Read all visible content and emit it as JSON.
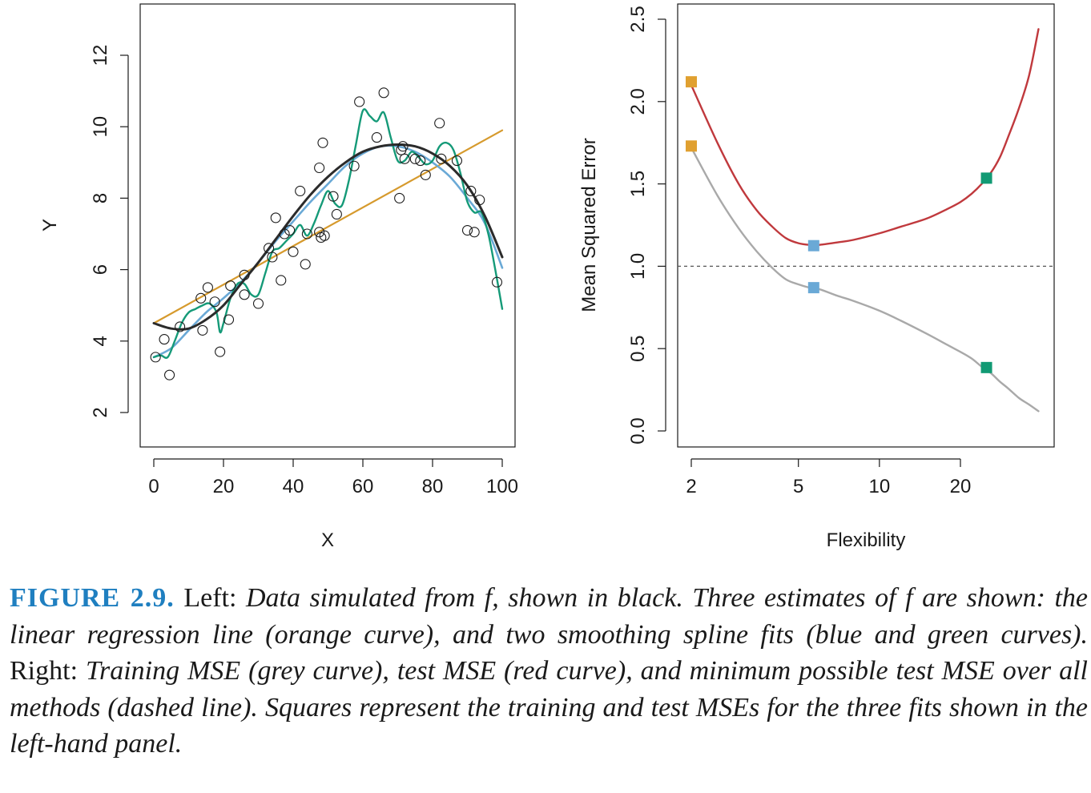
{
  "chart_data": [
    {
      "type": "scatter",
      "panel": "left",
      "xlabel": "X",
      "ylabel": "Y",
      "xlim": [
        0,
        100
      ],
      "ylim": [
        1,
        13
      ],
      "xticks": [
        "0",
        "20",
        "40",
        "60",
        "80",
        "100"
      ],
      "yticks": [
        "2",
        "4",
        "6",
        "8",
        "10",
        "12"
      ],
      "grid": false,
      "points": [
        [
          0.5,
          3.55
        ],
        [
          3,
          4.05
        ],
        [
          4.5,
          3.05
        ],
        [
          7.5,
          4.4
        ],
        [
          13.5,
          5.2
        ],
        [
          14,
          4.3
        ],
        [
          15.5,
          5.5
        ],
        [
          17.5,
          5.1
        ],
        [
          19,
          3.7
        ],
        [
          21.5,
          4.6
        ],
        [
          22,
          5.55
        ],
        [
          26,
          5.3
        ],
        [
          26,
          5.85
        ],
        [
          30,
          5.05
        ],
        [
          33,
          6.6
        ],
        [
          34,
          6.35
        ],
        [
          35,
          7.45
        ],
        [
          36.5,
          5.7
        ],
        [
          37.5,
          7.0
        ],
        [
          39,
          7.1
        ],
        [
          40,
          6.5
        ],
        [
          42,
          8.2
        ],
        [
          43.5,
          6.15
        ],
        [
          44,
          7.0
        ],
        [
          47.5,
          7.05
        ],
        [
          47.5,
          8.85
        ],
        [
          48,
          6.9
        ],
        [
          48.5,
          9.55
        ],
        [
          49,
          6.95
        ],
        [
          51.5,
          8.05
        ],
        [
          52.5,
          7.55
        ],
        [
          57.5,
          8.9
        ],
        [
          59,
          10.7
        ],
        [
          64,
          9.7
        ],
        [
          66,
          10.95
        ],
        [
          70.5,
          8.0
        ],
        [
          71,
          9.35
        ],
        [
          71.5,
          9.45
        ],
        [
          72,
          9.1
        ],
        [
          75,
          9.1
        ],
        [
          76.5,
          9.05
        ],
        [
          78,
          8.65
        ],
        [
          82,
          10.1
        ],
        [
          82.5,
          9.1
        ],
        [
          87,
          9.05
        ],
        [
          90,
          7.1
        ],
        [
          91,
          8.2
        ],
        [
          92,
          7.05
        ],
        [
          93.5,
          7.95
        ],
        [
          98.5,
          5.65
        ]
      ],
      "series": [
        {
          "role": "true-function",
          "color": "#2b2b2b",
          "points": [
            [
              0,
              4.5
            ],
            [
              5,
              4.35
            ],
            [
              10,
              4.35
            ],
            [
              15,
              4.6
            ],
            [
              20,
              5.0
            ],
            [
              25,
              5.6
            ],
            [
              30,
              6.2
            ],
            [
              35,
              6.85
            ],
            [
              40,
              7.5
            ],
            [
              45,
              8.1
            ],
            [
              50,
              8.6
            ],
            [
              55,
              9.0
            ],
            [
              60,
              9.3
            ],
            [
              65,
              9.45
            ],
            [
              70,
              9.5
            ],
            [
              75,
              9.45
            ],
            [
              80,
              9.25
            ],
            [
              85,
              8.9
            ],
            [
              90,
              8.35
            ],
            [
              95,
              7.5
            ],
            [
              100,
              6.35
            ]
          ]
        },
        {
          "role": "linear-regression",
          "color": "#d69a2d",
          "points": [
            [
              0,
              4.5
            ],
            [
              100,
              9.9
            ]
          ]
        },
        {
          "role": "smoothing-spline-blue",
          "color": "#6aa9d6",
          "points": [
            [
              0,
              3.55
            ],
            [
              5,
              3.8
            ],
            [
              10,
              4.3
            ],
            [
              15,
              4.8
            ],
            [
              20,
              5.2
            ],
            [
              25,
              5.65
            ],
            [
              30,
              6.2
            ],
            [
              35,
              6.8
            ],
            [
              40,
              7.35
            ],
            [
              45,
              7.9
            ],
            [
              50,
              8.4
            ],
            [
              55,
              8.9
            ],
            [
              60,
              9.25
            ],
            [
              65,
              9.45
            ],
            [
              70,
              9.45
            ],
            [
              75,
              9.3
            ],
            [
              80,
              9.0
            ],
            [
              85,
              8.6
            ],
            [
              90,
              8.0
            ],
            [
              95,
              7.3
            ],
            [
              100,
              6.05
            ]
          ]
        },
        {
          "role": "smoothing-spline-green",
          "color": "#159a78",
          "points": [
            [
              0,
              3.55
            ],
            [
              2,
              3.6
            ],
            [
              4,
              3.55
            ],
            [
              6,
              4.0
            ],
            [
              8,
              4.5
            ],
            [
              10,
              4.8
            ],
            [
              12,
              4.9
            ],
            [
              14,
              5.0
            ],
            [
              16,
              5.05
            ],
            [
              18,
              4.8
            ],
            [
              19,
              4.25
            ],
            [
              20,
              4.5
            ],
            [
              22,
              5.2
            ],
            [
              24,
              5.6
            ],
            [
              26,
              5.6
            ],
            [
              28,
              5.3
            ],
            [
              30,
              5.3
            ],
            [
              32,
              5.9
            ],
            [
              34,
              6.5
            ],
            [
              36,
              6.6
            ],
            [
              38,
              6.8
            ],
            [
              40,
              7.0
            ],
            [
              42,
              7.25
            ],
            [
              44,
              6.95
            ],
            [
              46,
              7.3
            ],
            [
              48,
              7.8
            ],
            [
              50,
              8.2
            ],
            [
              52,
              7.85
            ],
            [
              54,
              7.8
            ],
            [
              56,
              8.5
            ],
            [
              58,
              9.5
            ],
            [
              60,
              10.45
            ],
            [
              62,
              10.3
            ],
            [
              64,
              10.15
            ],
            [
              66,
              10.4
            ],
            [
              68,
              9.7
            ],
            [
              70,
              9.05
            ],
            [
              72,
              9.05
            ],
            [
              74,
              9.3
            ],
            [
              76,
              9.15
            ],
            [
              78,
              8.95
            ],
            [
              80,
              9.05
            ],
            [
              82,
              9.45
            ],
            [
              84,
              9.55
            ],
            [
              86,
              9.35
            ],
            [
              88,
              8.7
            ],
            [
              90,
              7.9
            ],
            [
              92,
              7.6
            ],
            [
              94,
              7.6
            ],
            [
              96,
              7.0
            ],
            [
              98,
              6.0
            ],
            [
              100,
              4.9
            ]
          ]
        }
      ]
    },
    {
      "type": "line",
      "panel": "right",
      "xlabel": "Flexibility",
      "ylabel": "Mean Squared Error",
      "xscale": "log",
      "xlim": [
        1.86,
        40.5
      ],
      "ylim": [
        -0.07,
        2.6
      ],
      "xticks": [
        "2",
        "5",
        "10",
        "20"
      ],
      "yticks": [
        "0.0",
        "0.5",
        "1.0",
        "1.5",
        "2.0",
        "2.5"
      ],
      "grid": false,
      "reference_line": {
        "y": 1.0,
        "style": "dashed",
        "color": "#555555"
      },
      "series": [
        {
          "role": "test-mse",
          "color": "#c0393d",
          "points": [
            [
              2,
              2.1
            ],
            [
              2.5,
              1.75
            ],
            [
              3,
              1.5
            ],
            [
              3.5,
              1.34
            ],
            [
              4,
              1.24
            ],
            [
              4.5,
              1.17
            ],
            [
              5,
              1.14
            ],
            [
              5.5,
              1.13
            ],
            [
              6,
              1.13
            ],
            [
              7,
              1.145
            ],
            [
              8,
              1.16
            ],
            [
              10,
              1.2
            ],
            [
              12,
              1.24
            ],
            [
              15,
              1.29
            ],
            [
              18,
              1.35
            ],
            [
              20,
              1.39
            ],
            [
              22,
              1.44
            ],
            [
              24,
              1.5
            ],
            [
              26,
              1.57
            ],
            [
              28,
              1.66
            ],
            [
              30,
              1.78
            ],
            [
              33,
              1.96
            ],
            [
              36,
              2.16
            ],
            [
              39,
              2.44
            ]
          ]
        },
        {
          "role": "training-mse",
          "color": "#a9a9a9",
          "points": [
            [
              2,
              1.72
            ],
            [
              2.5,
              1.43
            ],
            [
              3,
              1.23
            ],
            [
              3.5,
              1.09
            ],
            [
              4,
              0.99
            ],
            [
              4.5,
              0.92
            ],
            [
              5,
              0.89
            ],
            [
              5.5,
              0.87
            ],
            [
              6,
              0.86
            ],
            [
              7,
              0.82
            ],
            [
              8,
              0.79
            ],
            [
              10,
              0.73
            ],
            [
              12,
              0.67
            ],
            [
              15,
              0.59
            ],
            [
              18,
              0.52
            ],
            [
              20,
              0.48
            ],
            [
              22,
              0.44
            ],
            [
              24,
              0.39
            ],
            [
              26,
              0.35
            ],
            [
              28,
              0.3
            ],
            [
              30,
              0.26
            ],
            [
              33,
              0.2
            ],
            [
              36,
              0.16
            ],
            [
              39,
              0.12
            ]
          ]
        }
      ],
      "markers": [
        {
          "x": 2,
          "y": 2.12,
          "color": "#e0a030",
          "set": "test"
        },
        {
          "x": 2,
          "y": 1.73,
          "color": "#e0a030",
          "set": "training"
        },
        {
          "x": 5.7,
          "y": 1.125,
          "color": "#6aa9d6",
          "set": "test"
        },
        {
          "x": 5.7,
          "y": 0.87,
          "color": "#6aa9d6",
          "set": "training"
        },
        {
          "x": 25,
          "y": 1.535,
          "color": "#119a74",
          "set": "test"
        },
        {
          "x": 25,
          "y": 0.385,
          "color": "#119a74",
          "set": "training"
        }
      ]
    }
  ],
  "caption": {
    "figure_number": "FIGURE 2.9.",
    "part1": " Left: ",
    "part2": "Data simulated from f, shown in black. Three estimates of f are shown: the linear regression line (orange curve), and two smoothing spline fits (blue and green curves).",
    "part3": " Right: ",
    "part4": "Training MSE (grey curve), test MSE (red curve), and minimum possible test MSE over all methods (dashed line). Squares represent the training and test MSEs for the three fits shown in the left-hand panel."
  }
}
